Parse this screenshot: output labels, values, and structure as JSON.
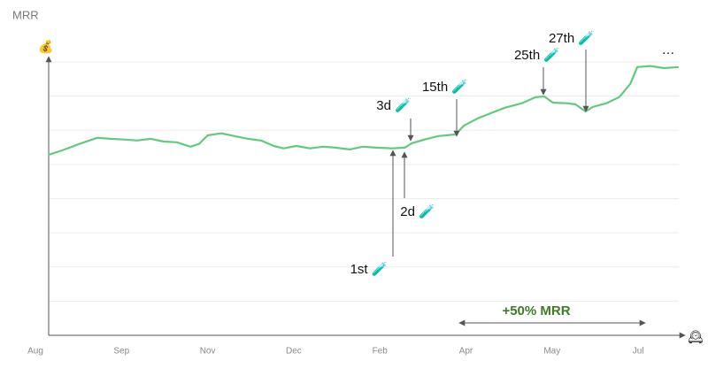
{
  "chart_data": {
    "type": "line",
    "title": "MRR",
    "y_icon": "💰",
    "x_icon": "🕰",
    "xticks": [
      {
        "value": 0,
        "label": "Aug"
      },
      {
        "value": 1,
        "label": "Sep"
      },
      {
        "value": 2,
        "label": "Nov"
      },
      {
        "value": 3,
        "label": "Dec"
      },
      {
        "value": 4,
        "label": "Feb"
      },
      {
        "value": 5,
        "label": "Apr"
      },
      {
        "value": 6,
        "label": "May"
      },
      {
        "value": 7,
        "label": "Jul"
      }
    ],
    "xlim": [
      0,
      7.55
    ],
    "ylim": [
      0,
      8
    ],
    "yticks": [
      0,
      1,
      2,
      3,
      4,
      5,
      6,
      7,
      8
    ],
    "grid": true,
    "series": [
      {
        "name": "MRR",
        "color": "#62c97e",
        "x": [
          0.15,
          0.31,
          0.51,
          0.72,
          0.87,
          1.03,
          1.18,
          1.34,
          1.49,
          1.64,
          1.8,
          1.9,
          2.0,
          2.16,
          2.31,
          2.47,
          2.62,
          2.77,
          2.88,
          3.03,
          3.19,
          3.34,
          3.49,
          3.65,
          3.8,
          3.96,
          4.14,
          4.29,
          4.37,
          4.52,
          4.68,
          4.88,
          4.98,
          5.14,
          5.29,
          5.45,
          5.65,
          5.81,
          5.91,
          6.01,
          6.17,
          6.27,
          6.39,
          6.47,
          6.63,
          6.78,
          6.91,
          6.99,
          7.14,
          7.3,
          7.47
        ],
        "values": [
          5.28,
          5.41,
          5.6,
          5.78,
          5.75,
          5.73,
          5.7,
          5.75,
          5.67,
          5.65,
          5.52,
          5.6,
          5.85,
          5.91,
          5.83,
          5.75,
          5.7,
          5.54,
          5.47,
          5.54,
          5.47,
          5.52,
          5.49,
          5.44,
          5.52,
          5.49,
          5.47,
          5.49,
          5.62,
          5.73,
          5.83,
          5.88,
          6.14,
          6.35,
          6.5,
          6.66,
          6.79,
          6.97,
          6.99,
          6.81,
          6.79,
          6.76,
          6.55,
          6.68,
          6.79,
          6.97,
          7.36,
          7.85,
          7.88,
          7.82,
          7.85
        ]
      }
    ],
    "annotations": [
      "1st 🧪",
      "2d 🧪",
      "3d 🧪",
      "15th 🧪",
      "25th 🧪",
      "27th 🧪",
      "…"
    ],
    "range_label": "+50% MRR"
  }
}
